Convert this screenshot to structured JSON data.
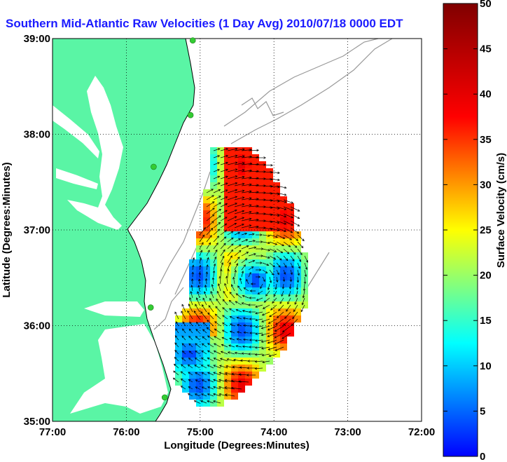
{
  "title": "Southern Mid-Atlantic Raw Velocities (1 Day Avg) 2010/07/18 0000 EDT",
  "axes": {
    "x_label": "Longitude (Degrees:Minutes)",
    "y_label": "Latitude (Degrees:Minutes)",
    "x_ticks": [
      {
        "value": -77,
        "label": "77:00"
      },
      {
        "value": -76,
        "label": "76:00"
      },
      {
        "value": -75,
        "label": "75:00"
      },
      {
        "value": -74,
        "label": "74:00"
      },
      {
        "value": -73,
        "label": "73:00"
      },
      {
        "value": -72,
        "label": "72:00"
      }
    ],
    "y_ticks": [
      {
        "value": 35,
        "label": "35:00"
      },
      {
        "value": 36,
        "label": "36:00"
      },
      {
        "value": 37,
        "label": "37:00"
      },
      {
        "value": 38,
        "label": "38:00"
      },
      {
        "value": 39,
        "label": "39:00"
      }
    ],
    "lon_range": [
      -77,
      -72
    ],
    "lat_range": [
      35,
      39
    ],
    "grid": true
  },
  "colorbar": {
    "label": "Surface Velocity (cm/s)",
    "ticks": [
      "0",
      "5",
      "10",
      "15",
      "20",
      "25",
      "30",
      "35",
      "40",
      "45",
      "50"
    ],
    "range": [
      0,
      50
    ],
    "colormap": "jet"
  },
  "colors": {
    "land": "#5af5a5",
    "title": "#1a1aff",
    "station": "#33cc33",
    "bathymetry": "#999999",
    "vectors": "#000000"
  },
  "stations": [
    {
      "lon": -75.1,
      "lat": 38.98
    },
    {
      "lon": -75.13,
      "lat": 38.2
    },
    {
      "lon": -75.63,
      "lat": 37.66
    },
    {
      "lon": -75.67,
      "lat": 36.19
    },
    {
      "lon": -75.48,
      "lat": 35.25
    }
  ]
}
